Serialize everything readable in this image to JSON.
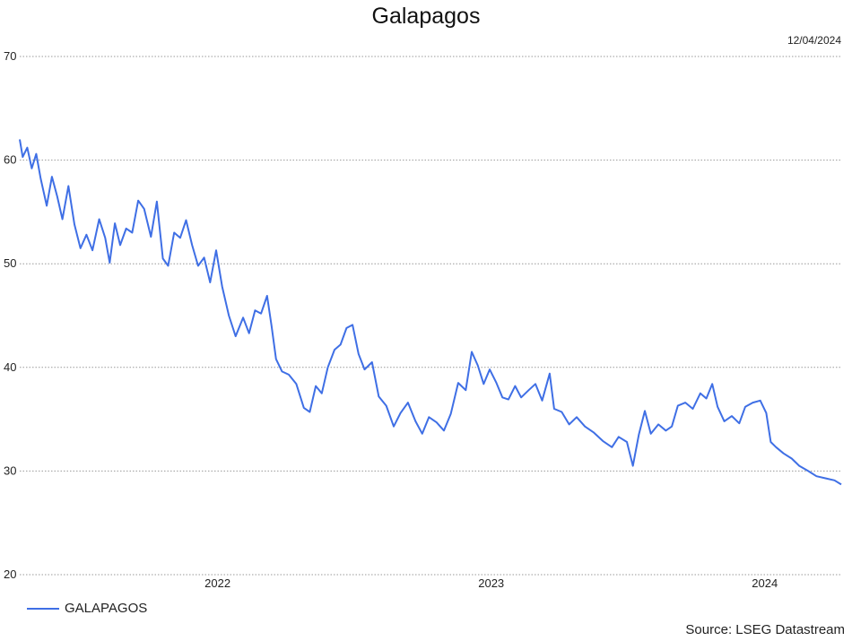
{
  "chart_data": {
    "type": "line",
    "title": "Galapagos",
    "date_label": "12/04/2024",
    "source": "Source: LSEG Datastream",
    "ylim": [
      20,
      70
    ],
    "yticks": [
      20,
      30,
      40,
      50,
      60,
      70
    ],
    "xlim": [
      "2021-04-12",
      "2024-04-12"
    ],
    "xticks": [
      {
        "label": "2022",
        "date": "2022-01-01"
      },
      {
        "label": "2023",
        "date": "2023-01-01"
      },
      {
        "label": "2024",
        "date": "2024-01-01"
      }
    ],
    "grid": true,
    "legend_position": "bottom-left",
    "series": [
      {
        "name": "GALAPAGOS",
        "color": "#3f6fe5",
        "points": [
          [
            "2021-04-12",
            62.0
          ],
          [
            "2021-04-16",
            60.3
          ],
          [
            "2021-04-22",
            61.2
          ],
          [
            "2021-04-28",
            59.2
          ],
          [
            "2021-05-04",
            60.6
          ],
          [
            "2021-05-10",
            58.2
          ],
          [
            "2021-05-18",
            55.6
          ],
          [
            "2021-05-25",
            58.4
          ],
          [
            "2021-06-01",
            56.5
          ],
          [
            "2021-06-08",
            54.3
          ],
          [
            "2021-06-16",
            57.5
          ],
          [
            "2021-06-24",
            53.8
          ],
          [
            "2021-07-02",
            51.5
          ],
          [
            "2021-07-10",
            52.8
          ],
          [
            "2021-07-18",
            51.3
          ],
          [
            "2021-07-27",
            54.3
          ],
          [
            "2021-08-04",
            52.5
          ],
          [
            "2021-08-10",
            50.1
          ],
          [
            "2021-08-17",
            53.9
          ],
          [
            "2021-08-24",
            51.8
          ],
          [
            "2021-09-01",
            53.4
          ],
          [
            "2021-09-09",
            53.0
          ],
          [
            "2021-09-17",
            56.1
          ],
          [
            "2021-09-25",
            55.3
          ],
          [
            "2021-10-04",
            52.6
          ],
          [
            "2021-10-12",
            56.0
          ],
          [
            "2021-10-20",
            50.5
          ],
          [
            "2021-10-27",
            49.8
          ],
          [
            "2021-11-04",
            53.0
          ],
          [
            "2021-11-12",
            52.5
          ],
          [
            "2021-11-20",
            54.2
          ],
          [
            "2021-11-28",
            51.8
          ],
          [
            "2021-12-06",
            49.8
          ],
          [
            "2021-12-14",
            50.6
          ],
          [
            "2021-12-22",
            48.2
          ],
          [
            "2021-12-30",
            51.3
          ],
          [
            "2022-01-07",
            47.8
          ],
          [
            "2022-01-16",
            45.0
          ],
          [
            "2022-01-25",
            43.0
          ],
          [
            "2022-02-04",
            44.8
          ],
          [
            "2022-02-12",
            43.3
          ],
          [
            "2022-02-20",
            45.5
          ],
          [
            "2022-02-28",
            45.2
          ],
          [
            "2022-03-08",
            46.9
          ],
          [
            "2022-03-14",
            44.0
          ],
          [
            "2022-03-20",
            40.8
          ],
          [
            "2022-03-28",
            39.6
          ],
          [
            "2022-04-06",
            39.3
          ],
          [
            "2022-04-16",
            38.4
          ],
          [
            "2022-04-26",
            36.1
          ],
          [
            "2022-05-04",
            35.7
          ],
          [
            "2022-05-12",
            38.2
          ],
          [
            "2022-05-20",
            37.5
          ],
          [
            "2022-05-28",
            40.0
          ],
          [
            "2022-06-06",
            41.7
          ],
          [
            "2022-06-14",
            42.2
          ],
          [
            "2022-06-22",
            43.8
          ],
          [
            "2022-06-30",
            44.1
          ],
          [
            "2022-07-08",
            41.3
          ],
          [
            "2022-07-16",
            39.8
          ],
          [
            "2022-07-26",
            40.5
          ],
          [
            "2022-08-04",
            37.2
          ],
          [
            "2022-08-14",
            36.3
          ],
          [
            "2022-08-24",
            34.3
          ],
          [
            "2022-09-02",
            35.6
          ],
          [
            "2022-09-12",
            36.6
          ],
          [
            "2022-09-22",
            34.8
          ],
          [
            "2022-10-01",
            33.6
          ],
          [
            "2022-10-10",
            35.2
          ],
          [
            "2022-10-20",
            34.7
          ],
          [
            "2022-10-30",
            33.9
          ],
          [
            "2022-11-08",
            35.5
          ],
          [
            "2022-11-18",
            38.5
          ],
          [
            "2022-11-28",
            37.8
          ],
          [
            "2022-12-06",
            41.5
          ],
          [
            "2022-12-14",
            40.2
          ],
          [
            "2022-12-22",
            38.4
          ],
          [
            "2022-12-30",
            39.8
          ],
          [
            "2023-01-08",
            38.5
          ],
          [
            "2023-01-16",
            37.1
          ],
          [
            "2023-01-24",
            36.9
          ],
          [
            "2023-02-02",
            38.2
          ],
          [
            "2023-02-10",
            37.1
          ],
          [
            "2023-02-20",
            37.8
          ],
          [
            "2023-03-01",
            38.4
          ],
          [
            "2023-03-10",
            36.8
          ],
          [
            "2023-03-20",
            39.4
          ],
          [
            "2023-03-26",
            36.0
          ],
          [
            "2023-04-05",
            35.7
          ],
          [
            "2023-04-15",
            34.5
          ],
          [
            "2023-04-25",
            35.2
          ],
          [
            "2023-05-06",
            34.3
          ],
          [
            "2023-05-18",
            33.7
          ],
          [
            "2023-05-30",
            32.9
          ],
          [
            "2023-06-11",
            32.3
          ],
          [
            "2023-06-20",
            33.3
          ],
          [
            "2023-07-01",
            32.8
          ],
          [
            "2023-07-09",
            30.5
          ],
          [
            "2023-07-17",
            33.5
          ],
          [
            "2023-07-25",
            35.8
          ],
          [
            "2023-08-02",
            33.6
          ],
          [
            "2023-08-12",
            34.5
          ],
          [
            "2023-08-22",
            33.9
          ],
          [
            "2023-08-30",
            34.3
          ],
          [
            "2023-09-07",
            36.3
          ],
          [
            "2023-09-17",
            36.6
          ],
          [
            "2023-09-27",
            36.0
          ],
          [
            "2023-10-07",
            37.5
          ],
          [
            "2023-10-15",
            37.0
          ],
          [
            "2023-10-23",
            38.4
          ],
          [
            "2023-10-30",
            36.2
          ],
          [
            "2023-11-08",
            34.8
          ],
          [
            "2023-11-18",
            35.3
          ],
          [
            "2023-11-28",
            34.6
          ],
          [
            "2023-12-06",
            36.2
          ],
          [
            "2023-12-16",
            36.6
          ],
          [
            "2023-12-26",
            36.8
          ],
          [
            "2024-01-03",
            35.6
          ],
          [
            "2024-01-09",
            32.8
          ],
          [
            "2024-01-16",
            32.3
          ],
          [
            "2024-01-26",
            31.7
          ],
          [
            "2024-02-06",
            31.2
          ],
          [
            "2024-02-16",
            30.5
          ],
          [
            "2024-02-28",
            30.0
          ],
          [
            "2024-03-10",
            29.5
          ],
          [
            "2024-03-22",
            29.3
          ],
          [
            "2024-04-03",
            29.1
          ],
          [
            "2024-04-12",
            28.7
          ]
        ]
      }
    ]
  }
}
